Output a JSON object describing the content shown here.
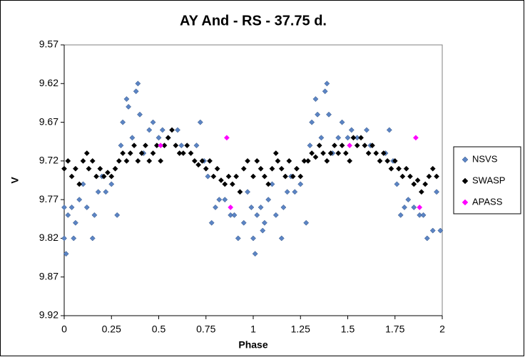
{
  "chart_data": {
    "type": "scatter",
    "title": "AY And - RS - 37.75 d.",
    "x_label": "Phase",
    "y_label": "V",
    "xlim": [
      0,
      2
    ],
    "xticks": [
      0,
      0.25,
      0.5,
      0.75,
      1,
      1.25,
      1.5,
      1.75,
      2
    ],
    "ylim": [
      9.92,
      9.57
    ],
    "yticks": [
      9.57,
      9.62,
      9.67,
      9.72,
      9.77,
      9.82,
      9.87,
      9.92
    ],
    "legend": "right",
    "series": [
      {
        "name": "NSVS",
        "color": "#5b84c4",
        "x": [
          0.0,
          0.0,
          0.01,
          0.02,
          0.04,
          0.05,
          0.06,
          0.08,
          0.1,
          0.12,
          0.15,
          0.16,
          0.18,
          0.2,
          0.22,
          0.25,
          0.28,
          0.3,
          0.31,
          0.33,
          0.34,
          0.36,
          0.38,
          0.39,
          0.4,
          0.42,
          0.45,
          0.47,
          0.5,
          0.52,
          0.55,
          0.6,
          0.62,
          0.7,
          0.72,
          0.74,
          0.76,
          0.78,
          0.8,
          0.82,
          0.85,
          0.88,
          0.9,
          0.92,
          0.95,
          0.97,
          0.99,
          1.0,
          1.01,
          1.02,
          1.04,
          1.05,
          1.06,
          1.08,
          1.1,
          1.12,
          1.15,
          1.16,
          1.18,
          1.2,
          1.22,
          1.25,
          1.28,
          1.3,
          1.31,
          1.33,
          1.34,
          1.36,
          1.38,
          1.39,
          1.4,
          1.42,
          1.45,
          1.47,
          1.5,
          1.52,
          1.55,
          1.6,
          1.62,
          1.7,
          1.72,
          1.74,
          1.76,
          1.78,
          1.8,
          1.82,
          1.85,
          1.88,
          1.9,
          1.92,
          1.95,
          1.97,
          1.99
        ],
        "values": [
          9.78,
          9.82,
          9.84,
          9.79,
          9.78,
          9.82,
          9.8,
          9.77,
          9.75,
          9.78,
          9.82,
          9.79,
          9.76,
          9.74,
          9.76,
          9.75,
          9.79,
          9.7,
          9.67,
          9.64,
          9.65,
          9.69,
          9.63,
          9.62,
          9.66,
          9.71,
          9.68,
          9.67,
          9.69,
          9.68,
          9.69,
          9.68,
          9.7,
          9.7,
          9.67,
          9.72,
          9.74,
          9.8,
          9.78,
          9.77,
          9.77,
          9.79,
          9.79,
          9.82,
          9.8,
          9.76,
          9.78,
          9.82,
          9.84,
          9.79,
          9.78,
          9.81,
          9.8,
          9.77,
          9.75,
          9.79,
          9.82,
          9.78,
          9.76,
          9.74,
          9.76,
          9.75,
          9.8,
          9.7,
          9.67,
          9.64,
          9.66,
          9.69,
          9.63,
          9.62,
          9.66,
          9.71,
          9.69,
          9.67,
          9.69,
          9.68,
          9.69,
          9.68,
          9.7,
          9.71,
          9.68,
          9.72,
          9.75,
          9.79,
          9.78,
          9.77,
          9.78,
          9.79,
          9.79,
          9.82,
          9.81,
          9.76,
          9.81
        ]
      },
      {
        "name": "SWASP",
        "color": "#000000",
        "x": [
          0.0,
          0.02,
          0.04,
          0.06,
          0.08,
          0.1,
          0.12,
          0.13,
          0.15,
          0.17,
          0.19,
          0.21,
          0.23,
          0.25,
          0.27,
          0.29,
          0.31,
          0.33,
          0.35,
          0.37,
          0.39,
          0.41,
          0.43,
          0.45,
          0.47,
          0.49,
          0.51,
          0.53,
          0.55,
          0.57,
          0.59,
          0.61,
          0.63,
          0.65,
          0.67,
          0.69,
          0.71,
          0.73,
          0.75,
          0.77,
          0.79,
          0.81,
          0.83,
          0.85,
          0.87,
          0.89,
          0.91,
          0.93,
          0.95,
          0.97,
          1.0,
          1.02,
          1.04,
          1.06,
          1.08,
          1.1,
          1.12,
          1.13,
          1.15,
          1.17,
          1.19,
          1.21,
          1.23,
          1.25,
          1.27,
          1.29,
          1.31,
          1.33,
          1.35,
          1.37,
          1.39,
          1.41,
          1.43,
          1.45,
          1.47,
          1.49,
          1.51,
          1.53,
          1.55,
          1.57,
          1.59,
          1.61,
          1.63,
          1.65,
          1.67,
          1.69,
          1.71,
          1.73,
          1.75,
          1.77,
          1.79,
          1.81,
          1.83,
          1.85,
          1.87,
          1.89,
          1.91,
          1.93,
          1.95,
          1.97
        ],
        "values": [
          9.73,
          9.72,
          9.74,
          9.73,
          9.75,
          9.72,
          9.71,
          9.73,
          9.72,
          9.74,
          9.73,
          9.74,
          9.735,
          9.74,
          9.73,
          9.72,
          9.71,
          9.72,
          9.71,
          9.7,
          9.72,
          9.71,
          9.7,
          9.72,
          9.71,
          9.7,
          9.72,
          9.7,
          9.69,
          9.68,
          9.7,
          9.71,
          9.71,
          9.7,
          9.71,
          9.72,
          9.725,
          9.72,
          9.73,
          9.72,
          9.74,
          9.73,
          9.745,
          9.75,
          9.74,
          9.75,
          9.74,
          9.76,
          9.73,
          9.72,
          9.74,
          9.72,
          9.73,
          9.74,
          9.75,
          9.73,
          9.71,
          9.72,
          9.73,
          9.74,
          9.72,
          9.74,
          9.73,
          9.74,
          9.72,
          9.72,
          9.71,
          9.715,
          9.7,
          9.71,
          9.72,
          9.71,
          9.7,
          9.71,
          9.7,
          9.71,
          9.72,
          9.69,
          9.7,
          9.69,
          9.7,
          9.71,
          9.7,
          9.71,
          9.72,
          9.71,
          9.72,
          9.73,
          9.72,
          9.73,
          9.74,
          9.73,
          9.74,
          9.75,
          9.745,
          9.76,
          9.75,
          9.74,
          9.73,
          9.74
        ]
      },
      {
        "name": "APASS",
        "color": "#ff00ff",
        "x": [
          0.51,
          0.86,
          0.88,
          1.51,
          1.86,
          1.88
        ],
        "values": [
          9.7,
          9.69,
          9.78,
          9.7,
          9.69,
          9.78
        ]
      }
    ]
  }
}
